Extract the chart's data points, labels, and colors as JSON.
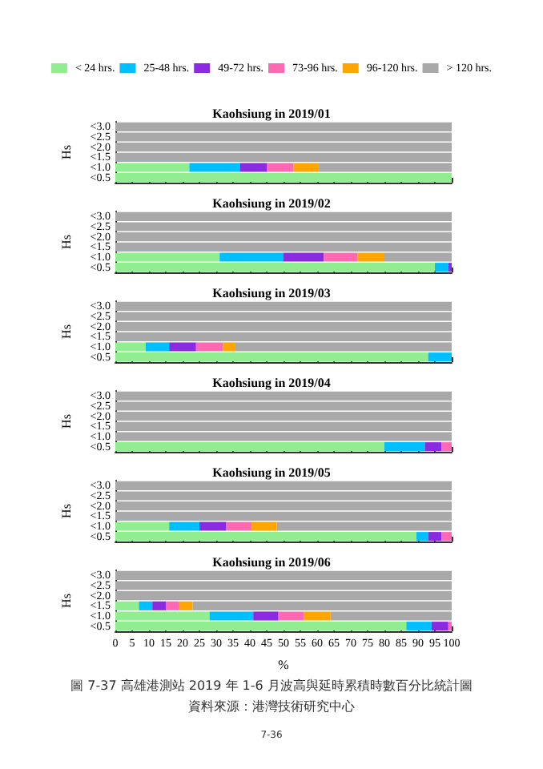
{
  "chart_data": [
    {
      "type": "bar",
      "orientation": "horizontal",
      "stacked": true,
      "title": "Kaohsiung in 2019/01",
      "ylabel": "Hs",
      "legend": "top",
      "tick_labels": "y",
      "xlim": [
        0,
        100
      ],
      "xticks": [
        0,
        5,
        10,
        15,
        20,
        25,
        30,
        35,
        40,
        45,
        50,
        55,
        60,
        65,
        70,
        75,
        80,
        85,
        90,
        95,
        100
      ],
      "categories": [
        "<3.0",
        "<2.5",
        "<2.0",
        "<1.5",
        "<1.0",
        "<0.5"
      ],
      "series": [
        {
          "name": "< 24 hrs.",
          "color": "#90ee90",
          "values": [
            0,
            0,
            0,
            0,
            22,
            100
          ]
        },
        {
          "name": "25-48 hrs.",
          "color": "#00bfff",
          "values": [
            0,
            0,
            0,
            0,
            15,
            0
          ]
        },
        {
          "name": "49-72 hrs.",
          "color": "#8a2be2",
          "values": [
            0,
            0,
            0,
            0,
            8,
            0
          ]
        },
        {
          "name": "73-96 hrs.",
          "color": "#ff69b4",
          "values": [
            0,
            0,
            0,
            0,
            8,
            0
          ]
        },
        {
          "name": "96-120 hrs.",
          "color": "#ffa500",
          "values": [
            0,
            0,
            0,
            0,
            7.5,
            0
          ]
        },
        {
          "name": "> 120 hrs.",
          "color": "#a9a9a9",
          "values": [
            100,
            100,
            100,
            100,
            39.5,
            0
          ]
        }
      ]
    },
    {
      "type": "bar",
      "orientation": "horizontal",
      "stacked": true,
      "title": "Kaohsiung in 2019/02",
      "ylabel": "Hs",
      "tick_labels": "y",
      "xlim": [
        0,
        100
      ],
      "xticks": [
        0,
        5,
        10,
        15,
        20,
        25,
        30,
        35,
        40,
        45,
        50,
        55,
        60,
        65,
        70,
        75,
        80,
        85,
        90,
        95,
        100
      ],
      "categories": [
        "<3.0",
        "<2.5",
        "<2.0",
        "<1.5",
        "<1.0",
        "<0.5"
      ],
      "series": [
        {
          "color": "#90ee90",
          "values": [
            0,
            0,
            0,
            0,
            31,
            95
          ]
        },
        {
          "color": "#00bfff",
          "values": [
            0,
            0,
            0,
            0,
            19,
            4
          ]
        },
        {
          "color": "#8a2be2",
          "values": [
            0,
            0,
            0,
            0,
            12,
            1
          ]
        },
        {
          "color": "#ff69b4",
          "values": [
            0,
            0,
            0,
            0,
            10,
            0
          ]
        },
        {
          "color": "#ffa500",
          "values": [
            0,
            0,
            0,
            0,
            8,
            0
          ]
        },
        {
          "color": "#a9a9a9",
          "values": [
            100,
            100,
            100,
            100,
            20,
            0
          ]
        }
      ]
    },
    {
      "type": "bar",
      "orientation": "horizontal",
      "stacked": true,
      "title": "Kaohsiung in 2019/03",
      "ylabel": "Hs",
      "tick_labels": "y",
      "xlim": [
        0,
        100
      ],
      "xticks": [
        0,
        5,
        10,
        15,
        20,
        25,
        30,
        35,
        40,
        45,
        50,
        55,
        60,
        65,
        70,
        75,
        80,
        85,
        90,
        95,
        100
      ],
      "categories": [
        "<3.0",
        "<2.5",
        "<2.0",
        "<1.5",
        "<1.0",
        "<0.5"
      ],
      "series": [
        {
          "color": "#90ee90",
          "values": [
            0,
            0,
            0,
            0,
            9,
            93
          ]
        },
        {
          "color": "#00bfff",
          "values": [
            0,
            0,
            0,
            0,
            7,
            7
          ]
        },
        {
          "color": "#8a2be2",
          "values": [
            0,
            0,
            0,
            0,
            8,
            0
          ]
        },
        {
          "color": "#ff69b4",
          "values": [
            0,
            0,
            0,
            0,
            8,
            0
          ]
        },
        {
          "color": "#ffa500",
          "values": [
            0,
            0,
            0,
            0,
            3.5,
            0
          ]
        },
        {
          "color": "#a9a9a9",
          "values": [
            100,
            100,
            100,
            100,
            64.5,
            0
          ]
        }
      ]
    },
    {
      "type": "bar",
      "orientation": "horizontal",
      "stacked": true,
      "title": "Kaohsiung in 2019/04",
      "ylabel": "Hs",
      "tick_labels": "y",
      "xlim": [
        0,
        100
      ],
      "xticks": [
        0,
        5,
        10,
        15,
        20,
        25,
        30,
        35,
        40,
        45,
        50,
        55,
        60,
        65,
        70,
        75,
        80,
        85,
        90,
        95,
        100
      ],
      "categories": [
        "<3.0",
        "<2.5",
        "<2.0",
        "<1.5",
        "<1.0",
        "<0.5"
      ],
      "series": [
        {
          "color": "#90ee90",
          "values": [
            0,
            0,
            0,
            0,
            0,
            80
          ]
        },
        {
          "color": "#00bfff",
          "values": [
            0,
            0,
            0,
            0,
            0,
            12
          ]
        },
        {
          "color": "#8a2be2",
          "values": [
            0,
            0,
            0,
            0,
            0,
            5
          ]
        },
        {
          "color": "#ff69b4",
          "values": [
            0,
            0,
            0,
            0,
            0,
            3
          ]
        },
        {
          "color": "#ffa500",
          "values": [
            0,
            0,
            0,
            0,
            0,
            0
          ]
        },
        {
          "color": "#a9a9a9",
          "values": [
            100,
            100,
            100,
            100,
            100,
            0
          ]
        }
      ]
    },
    {
      "type": "bar",
      "orientation": "horizontal",
      "stacked": true,
      "title": "Kaohsiung in 2019/05",
      "ylabel": "Hs",
      "tick_labels": "y",
      "xlim": [
        0,
        100
      ],
      "xticks": [
        0,
        5,
        10,
        15,
        20,
        25,
        30,
        35,
        40,
        45,
        50,
        55,
        60,
        65,
        70,
        75,
        80,
        85,
        90,
        95,
        100
      ],
      "categories": [
        "<3.0",
        "<2.5",
        "<2.0",
        "<1.5",
        "<1.0",
        "<0.5"
      ],
      "series": [
        {
          "color": "#90ee90",
          "values": [
            0,
            0,
            0,
            0,
            16,
            89.5
          ]
        },
        {
          "color": "#00bfff",
          "values": [
            0,
            0,
            0,
            0,
            9,
            3.5
          ]
        },
        {
          "color": "#8a2be2",
          "values": [
            0,
            0,
            0,
            0,
            8,
            4
          ]
        },
        {
          "color": "#ff69b4",
          "values": [
            0,
            0,
            0,
            0,
            7.5,
            3
          ]
        },
        {
          "color": "#ffa500",
          "values": [
            0,
            0,
            0,
            0,
            7.5,
            0
          ]
        },
        {
          "color": "#a9a9a9",
          "values": [
            100,
            100,
            100,
            100,
            52,
            0
          ]
        }
      ]
    },
    {
      "type": "bar",
      "orientation": "horizontal",
      "stacked": true,
      "title": "Kaohsiung in 2019/06",
      "ylabel": "Hs",
      "xlabel": "%",
      "xlim": [
        0,
        100
      ],
      "xticks": [
        0,
        5,
        10,
        15,
        20,
        25,
        30,
        35,
        40,
        45,
        50,
        55,
        60,
        65,
        70,
        75,
        80,
        85,
        90,
        95,
        100
      ],
      "categories": [
        "<3.0",
        "<2.5",
        "<2.0",
        "<1.5",
        "<1.0",
        "<0.5"
      ],
      "annotations": [
        "圖 7-37 高雄港測站 2019 年 1-6 月波高與延時累積時數百分比統計圖",
        "資料來源：港灣技術研究中心",
        "7-36"
      ],
      "series": [
        {
          "color": "#90ee90",
          "values": [
            0,
            0,
            0,
            7,
            28,
            86.5
          ]
        },
        {
          "color": "#00bfff",
          "values": [
            0,
            0,
            0,
            4,
            13,
            7.5
          ]
        },
        {
          "color": "#8a2be2",
          "values": [
            0,
            0,
            0,
            4,
            7.5,
            5
          ]
        },
        {
          "color": "#ff69b4",
          "values": [
            0,
            0,
            0,
            4,
            7.5,
            1
          ]
        },
        {
          "color": "#ffa500",
          "values": [
            0,
            0,
            0,
            4,
            8,
            0
          ]
        },
        {
          "color": "#a9a9a9",
          "values": [
            100,
            100,
            100,
            77,
            36,
            0
          ]
        }
      ]
    }
  ]
}
